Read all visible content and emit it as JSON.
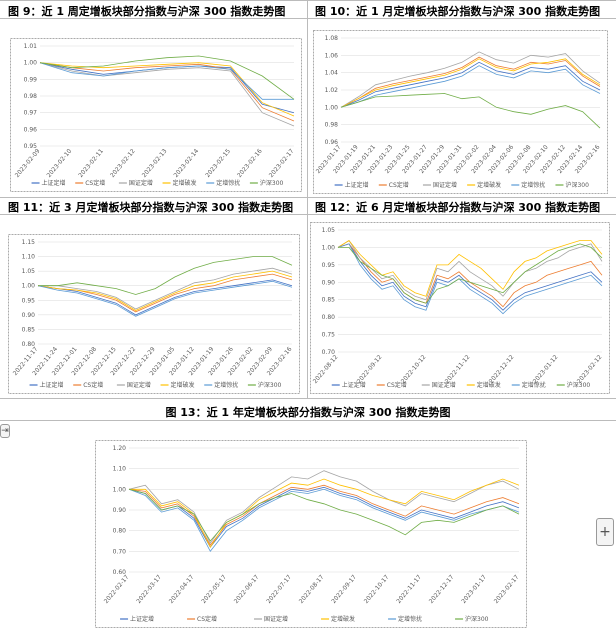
{
  "chart_data": [
    {
      "type": "line",
      "title": "图 9：近 1 周定增板块部分指数与沪深 300 指数走势图",
      "categories": [
        "2023-02-09",
        "2023-02-10",
        "2023-02-11",
        "2023-02-12",
        "2023-02-13",
        "2023-02-14",
        "2023-02-15",
        "2023-02-16",
        "2023-02-17"
      ],
      "ylim": [
        0.95,
        1.01
      ],
      "yticks": [
        0.95,
        0.96,
        0.97,
        0.98,
        0.99,
        {
          "value": 1,
          "label": "1.00"
        },
        1.01
      ],
      "grid": true,
      "series": [
        {
          "name": "上证定增",
          "color": "#4472c4",
          "values": [
            1.0,
            0.996,
            0.993,
            0.995,
            0.997,
            0.998,
            0.997,
            0.975,
            0.97
          ]
        },
        {
          "name": "CS定增",
          "color": "#ed7d31",
          "values": [
            1.0,
            0.997,
            0.995,
            0.997,
            0.998,
            0.999,
            0.996,
            0.973,
            0.965
          ]
        },
        {
          "name": "国证定增",
          "color": "#a5a5a5",
          "values": [
            1.0,
            0.995,
            0.992,
            0.994,
            0.996,
            0.997,
            0.995,
            0.97,
            0.962
          ]
        },
        {
          "name": "定增破发",
          "color": "#ffc000",
          "values": [
            1.0,
            0.998,
            0.997,
            0.998,
            0.999,
            1.0,
            0.998,
            0.976,
            0.968
          ]
        },
        {
          "name": "定增惊扰",
          "color": "#5b9bd5",
          "values": [
            1.0,
            0.994,
            0.992,
            0.995,
            0.997,
            0.998,
            0.996,
            0.978,
            0.978
          ]
        },
        {
          "name": "沪深300",
          "color": "#70ad47",
          "values": [
            1.0,
            0.997,
            0.998,
            1.001,
            1.003,
            1.004,
            1.001,
            0.992,
            0.978
          ]
        }
      ]
    },
    {
      "type": "line",
      "title": "图 10：近 1 月定增板块部分指数与沪深 300 指数走势图",
      "categories": [
        "2023-01-17",
        "2023-01-19",
        "2023-01-21",
        "2023-01-23",
        "2023-01-25",
        "2023-01-27",
        "2023-01-29",
        "2023-01-31",
        "2023-02-02",
        "2023-02-04",
        "2023-02-06",
        "2023-02-08",
        "2023-02-10",
        "2023-02-12",
        "2023-02-14",
        "2023-02-16"
      ],
      "ylim": [
        0.96,
        1.08
      ],
      "yticks": [
        0.96,
        0.98,
        {
          "value": 1,
          "label": "1.00"
        },
        1.02,
        1.04,
        1.06,
        1.08
      ],
      "grid": true,
      "series": [
        {
          "name": "上证定增",
          "color": "#4472c4",
          "values": [
            1.0,
            1.008,
            1.018,
            1.022,
            1.026,
            1.03,
            1.034,
            1.04,
            1.052,
            1.042,
            1.038,
            1.046,
            1.044,
            1.048,
            1.03,
            1.02
          ]
        },
        {
          "name": "CS定增",
          "color": "#ed7d31",
          "values": [
            1.0,
            1.01,
            1.022,
            1.027,
            1.031,
            1.035,
            1.039,
            1.046,
            1.058,
            1.048,
            1.044,
            1.052,
            1.05,
            1.054,
            1.036,
            1.024
          ]
        },
        {
          "name": "国证定增",
          "color": "#a5a5a5",
          "values": [
            1.0,
            1.012,
            1.026,
            1.031,
            1.036,
            1.04,
            1.045,
            1.052,
            1.064,
            1.055,
            1.051,
            1.06,
            1.058,
            1.062,
            1.042,
            1.028
          ]
        },
        {
          "name": "定增破发",
          "color": "#ffc000",
          "values": [
            1.0,
            1.01,
            1.02,
            1.025,
            1.029,
            1.033,
            1.037,
            1.044,
            1.056,
            1.046,
            1.042,
            1.05,
            1.052,
            1.056,
            1.038,
            1.026
          ]
        },
        {
          "name": "定增惊扰",
          "color": "#5b9bd5",
          "values": [
            1.0,
            1.006,
            1.014,
            1.018,
            1.022,
            1.026,
            1.03,
            1.036,
            1.048,
            1.038,
            1.034,
            1.042,
            1.04,
            1.044,
            1.026,
            1.016
          ]
        },
        {
          "name": "沪深300",
          "color": "#70ad47",
          "values": [
            1.0,
            1.006,
            1.012,
            1.013,
            1.014,
            1.015,
            1.016,
            1.01,
            1.012,
            1.0,
            0.995,
            0.992,
            0.998,
            1.002,
            0.995,
            0.976
          ]
        }
      ]
    },
    {
      "type": "line",
      "title": "图 11：近 3 月定增板块部分指数与沪深 300 指数走势图",
      "categories": [
        "2022-11-17",
        "2022-11-24",
        "2022-12-01",
        "2022-12-08",
        "2022-12-15",
        "2022-12-22",
        "2022-12-29",
        "2023-01-05",
        "2023-01-12",
        "2023-01-19",
        "2023-01-26",
        "2023-02-02",
        "2023-02-09",
        "2023-02-16"
      ],
      "ylim": [
        0.8,
        1.15
      ],
      "yticks": [
        {
          "value": 0.8,
          "label": "0.80"
        },
        0.85,
        {
          "value": 0.9,
          "label": "0.90"
        },
        0.95,
        {
          "value": 1,
          "label": "1.00"
        },
        1.05,
        {
          "value": 1.1,
          "label": "1.10"
        },
        1.15
      ],
      "grid": true,
      "series": [
        {
          "name": "上证定增",
          "color": "#4472c4",
          "values": [
            1.0,
            0.99,
            0.98,
            0.96,
            0.94,
            0.9,
            0.93,
            0.96,
            0.98,
            0.99,
            1.0,
            1.01,
            1.02,
            1.0
          ]
        },
        {
          "name": "CS定增",
          "color": "#ed7d31",
          "values": [
            1.0,
            0.99,
            0.985,
            0.97,
            0.95,
            0.91,
            0.94,
            0.97,
            0.99,
            1.0,
            1.02,
            1.03,
            1.04,
            1.02
          ]
        },
        {
          "name": "国证定增",
          "color": "#a5a5a5",
          "values": [
            1.0,
            1.0,
            0.99,
            0.98,
            0.96,
            0.92,
            0.95,
            0.98,
            1.01,
            1.02,
            1.04,
            1.05,
            1.06,
            1.04
          ]
        },
        {
          "name": "定增破发",
          "color": "#ffc000",
          "values": [
            1.0,
            0.99,
            0.985,
            0.975,
            0.955,
            0.915,
            0.945,
            0.975,
            1.0,
            1.01,
            1.03,
            1.04,
            1.05,
            1.03
          ]
        },
        {
          "name": "定增惊扰",
          "color": "#5b9bd5",
          "values": [
            1.0,
            0.985,
            0.975,
            0.955,
            0.935,
            0.895,
            0.925,
            0.955,
            0.975,
            0.985,
            0.995,
            1.005,
            1.015,
            0.995
          ]
        },
        {
          "name": "沪深300",
          "color": "#70ad47",
          "values": [
            1.0,
            1.0,
            1.01,
            1.0,
            0.99,
            0.97,
            0.99,
            1.03,
            1.06,
            1.08,
            1.09,
            1.1,
            1.1,
            1.07
          ]
        }
      ]
    },
    {
      "type": "line",
      "title": "图 12：近 6 月定增板块部分指数与沪深 300 指数走势图",
      "categories": [
        "2022-08-12",
        null,
        null,
        null,
        "2022-09-12",
        null,
        null,
        null,
        "2022-10-12",
        null,
        null,
        null,
        "2022-11-12",
        null,
        null,
        null,
        "2022-12-12",
        null,
        null,
        null,
        "2023-01-12",
        null,
        null,
        null,
        "2023-02-12"
      ],
      "ylim": [
        0.7,
        1.05
      ],
      "yticks": [
        {
          "value": 0.7,
          "label": "0.70"
        },
        0.75,
        {
          "value": 0.8,
          "label": "0.80"
        },
        0.85,
        {
          "value": 0.9,
          "label": "0.90"
        },
        0.95,
        {
          "value": 1,
          "label": "1.00"
        },
        1.05
      ],
      "grid": true,
      "series": [
        {
          "name": "上证定增",
          "color": "#4472c4",
          "values": [
            1.0,
            1.01,
            0.96,
            0.92,
            0.89,
            0.9,
            0.86,
            0.84,
            0.83,
            0.91,
            0.9,
            0.92,
            0.89,
            0.87,
            0.85,
            0.82,
            0.85,
            0.87,
            0.88,
            0.89,
            0.9,
            0.91,
            0.92,
            0.93,
            0.9
          ]
        },
        {
          "name": "CS定增",
          "color": "#ed7d31",
          "values": [
            1.0,
            1.01,
            0.97,
            0.93,
            0.9,
            0.91,
            0.87,
            0.85,
            0.84,
            0.92,
            0.91,
            0.93,
            0.9,
            0.88,
            0.86,
            0.83,
            0.87,
            0.89,
            0.9,
            0.92,
            0.93,
            0.94,
            0.95,
            0.96,
            0.92
          ]
        },
        {
          "name": "国证定增",
          "color": "#a5a5a5",
          "values": [
            1.0,
            1.02,
            0.97,
            0.94,
            0.91,
            0.92,
            0.88,
            0.86,
            0.85,
            0.94,
            0.93,
            0.96,
            0.93,
            0.91,
            0.89,
            0.86,
            0.9,
            0.93,
            0.94,
            0.96,
            0.97,
            0.99,
            1.0,
            1.01,
            0.96
          ]
        },
        {
          "name": "定增破发",
          "color": "#ffc000",
          "values": [
            1.0,
            1.02,
            0.98,
            0.95,
            0.92,
            0.93,
            0.89,
            0.87,
            0.86,
            0.95,
            0.95,
            0.98,
            0.96,
            0.94,
            0.91,
            0.88,
            0.93,
            0.96,
            0.97,
            0.99,
            1.0,
            1.01,
            1.02,
            1.02,
            0.98
          ]
        },
        {
          "name": "定增惊扰",
          "color": "#5b9bd5",
          "values": [
            1.0,
            1.01,
            0.95,
            0.91,
            0.88,
            0.89,
            0.85,
            0.83,
            0.82,
            0.9,
            0.89,
            0.91,
            0.88,
            0.86,
            0.84,
            0.81,
            0.84,
            0.86,
            0.87,
            0.88,
            0.89,
            0.9,
            0.91,
            0.92,
            0.89
          ]
        },
        {
          "name": "沪深300",
          "color": "#70ad47",
          "values": [
            1.0,
            1.0,
            0.96,
            0.94,
            0.92,
            0.91,
            0.87,
            0.85,
            0.84,
            0.88,
            0.89,
            0.91,
            0.9,
            0.89,
            0.88,
            0.87,
            0.9,
            0.93,
            0.95,
            0.97,
            0.99,
            1.0,
            1.01,
            1.0,
            0.97
          ]
        }
      ]
    },
    {
      "type": "line",
      "title": "图 13：近 1 年定增板块部分指数与沪深 300 指数走势图",
      "categories": [
        "2022-02-17",
        null,
        "2022-03-17",
        null,
        "2022-04-17",
        null,
        "2022-05-17",
        null,
        "2022-06-17",
        null,
        "2022-07-17",
        null,
        "2022-08-17",
        null,
        "2022-09-17",
        null,
        "2022-10-17",
        null,
        "2022-11-17",
        null,
        "2022-12-17",
        null,
        "2023-01-17",
        null,
        "2023-02-17"
      ],
      "ylim": [
        0.6,
        1.2
      ],
      "yticks": [
        {
          "value": 0.6,
          "label": "0.60"
        },
        {
          "value": 0.7,
          "label": "0.70"
        },
        {
          "value": 0.8,
          "label": "0.80"
        },
        {
          "value": 0.9,
          "label": "0.90"
        },
        {
          "value": 1,
          "label": "1.00"
        },
        {
          "value": 1.1,
          "label": "1.10"
        },
        {
          "value": 1.2,
          "label": "1.20"
        }
      ],
      "grid": true,
      "series": [
        {
          "name": "上证定增",
          "color": "#4472c4",
          "values": [
            1.0,
            0.98,
            0.9,
            0.92,
            0.86,
            0.72,
            0.82,
            0.86,
            0.92,
            0.96,
            1.0,
            0.99,
            1.01,
            0.98,
            0.96,
            0.92,
            0.89,
            0.86,
            0.9,
            0.88,
            0.86,
            0.89,
            0.92,
            0.94,
            0.91
          ]
        },
        {
          "name": "CS定增",
          "color": "#ed7d31",
          "values": [
            1.0,
            0.99,
            0.91,
            0.93,
            0.87,
            0.73,
            0.83,
            0.87,
            0.93,
            0.97,
            1.01,
            1.0,
            1.02,
            0.99,
            0.97,
            0.93,
            0.9,
            0.87,
            0.92,
            0.9,
            0.88,
            0.91,
            0.94,
            0.96,
            0.93
          ]
        },
        {
          "name": "国证定增",
          "color": "#a5a5a5",
          "values": [
            1.0,
            1.02,
            0.93,
            0.95,
            0.89,
            0.74,
            0.85,
            0.89,
            0.96,
            1.01,
            1.06,
            1.05,
            1.09,
            1.06,
            1.04,
            0.99,
            0.95,
            0.92,
            0.98,
            0.96,
            0.94,
            0.98,
            1.02,
            1.04,
            1.0
          ]
        },
        {
          "name": "定增破发",
          "color": "#ffc000",
          "values": [
            1.0,
            1.0,
            0.92,
            0.94,
            0.88,
            0.72,
            0.84,
            0.88,
            0.95,
            0.99,
            1.03,
            1.02,
            1.05,
            1.02,
            1.0,
            0.97,
            0.95,
            0.93,
            0.99,
            0.97,
            0.95,
            0.99,
            1.02,
            1.05,
            1.02
          ]
        },
        {
          "name": "定增惊扰",
          "color": "#5b9bd5",
          "values": [
            1.0,
            0.97,
            0.89,
            0.91,
            0.85,
            0.7,
            0.8,
            0.85,
            0.91,
            0.95,
            0.99,
            0.98,
            1.0,
            0.97,
            0.95,
            0.91,
            0.88,
            0.85,
            0.89,
            0.87,
            0.85,
            0.88,
            0.9,
            0.92,
            0.89
          ]
        },
        {
          "name": "沪深300",
          "color": "#70ad47",
          "values": [
            1.0,
            0.98,
            0.9,
            0.92,
            0.88,
            0.75,
            0.84,
            0.88,
            0.93,
            0.96,
            0.98,
            0.95,
            0.93,
            0.9,
            0.88,
            0.85,
            0.82,
            0.78,
            0.84,
            0.85,
            0.84,
            0.87,
            0.9,
            0.92,
            0.88
          ]
        }
      ]
    }
  ]
}
